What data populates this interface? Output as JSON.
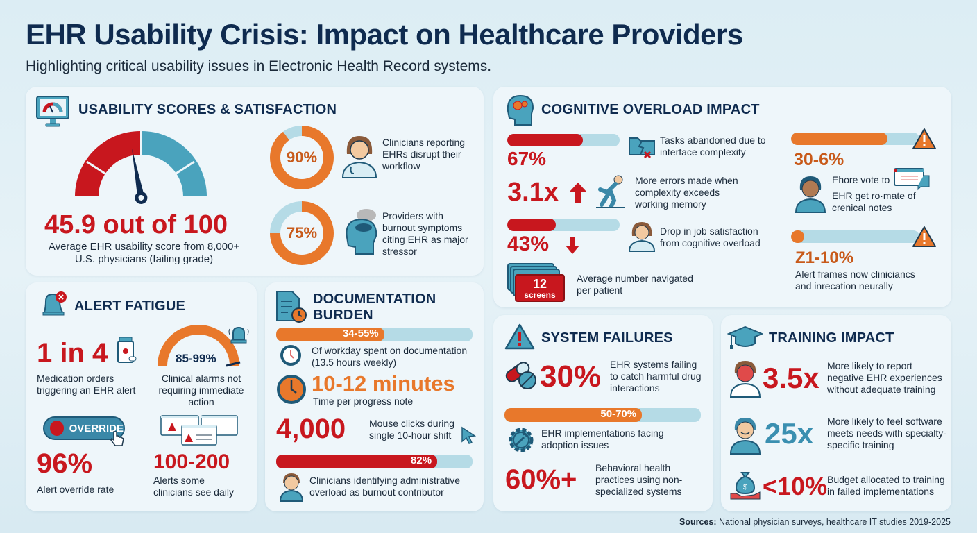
{
  "header": {
    "title": "EHR Usability Crisis: Impact on Healthcare Providers",
    "subtitle": "Highlighting critical usability issues in Electronic Health Record systems."
  },
  "colors": {
    "red": "#c8171e",
    "orange": "#e8782b",
    "teal": "#4aa3bd",
    "navy": "#0f2b4f",
    "track": "#b5dbe6"
  },
  "usability": {
    "title": "USABILITY SCORES & SATISFACTION",
    "icon": "monitor-gauge-icon",
    "score": 45.9,
    "score_text": "45.9 out of 100",
    "score_max": 100,
    "score_desc": "Average EHR usability score from 8,000+ U.S. physicians (failing grade)",
    "donuts": [
      {
        "value": 90,
        "label": "90%",
        "icon": "clinician-icon",
        "desc": "Clinicians reporting EHRs disrupt their workflow"
      },
      {
        "value": 75,
        "label": "75%",
        "icon": "stressed-head-icon",
        "desc": "Providers with burnout symptoms citing EHR as major stressor"
      }
    ]
  },
  "cognitive": {
    "title": "COGNITIVE OVERLOAD IMPACT",
    "icon": "brain-gears-icon",
    "items": [
      {
        "value": "67%",
        "fill": 67,
        "icon": "broken-folder-icon",
        "desc": "Tasks abandoned due to interface complexity"
      },
      {
        "value": "3.1x",
        "arrow": "up",
        "icon": "stumbling-person-icon",
        "desc": "More errors made when complexity exceeds working memory"
      },
      {
        "value": "43%",
        "fill": 43,
        "arrow": "down",
        "icon": "clinician-icon",
        "desc": "Drop in job satisfaction from cognitive overload"
      },
      {
        "value": "12",
        "unit": "screens",
        "icon": "stacked-screens-icon",
        "desc": "Average number navigated per patient"
      }
    ],
    "side_items": [
      {
        "value": "30-6%",
        "fill": 75,
        "icon": "warning-icon",
        "desc_line1": "Ehore vote to",
        "desc_line2": "EHR get ro·mate of crenical notes"
      },
      {
        "value": "Z1-10%",
        "fill": 10,
        "icon": "warning-icon",
        "desc": "Alert frames now cliniciancs and inrecation neurally"
      }
    ]
  },
  "alert": {
    "title": "ALERT FATIGUE",
    "icon": "bell-x-icon",
    "medication": {
      "value": "1 in 4",
      "desc": "Medication orders triggering an EHR alert"
    },
    "alarms": {
      "value": "85-99%",
      "desc": "Clinical alarms not requiring immediate action"
    },
    "override_label": "OVERRIDE",
    "override": {
      "value": "96%",
      "desc": "Alert override rate"
    },
    "daily": {
      "value": "100-200",
      "desc": "Alerts some clinicians see daily"
    }
  },
  "documentation": {
    "title_line1": "DOCUMENTATION",
    "title_line2": "BURDEN",
    "icon": "document-clock-icon",
    "workday": {
      "value": "34-55%",
      "fill": 55,
      "desc": "Of workday spent on documentation (13.5 hours weekly)"
    },
    "note": {
      "value": "10-12 minutes",
      "desc": "Time per progress note"
    },
    "clicks": {
      "value": "4,000",
      "desc": "Mouse clicks during single 10-hour shift"
    },
    "admin": {
      "value": "82%",
      "fill": 82,
      "desc": "Clinicians identifying administrative overload as burnout contributor"
    }
  },
  "system": {
    "title": "SYSTEM FAILURES",
    "icon": "warning-icon",
    "drug": {
      "value": "30%",
      "desc": "EHR systems failing to catch harmful drug interactions"
    },
    "adoption": {
      "value": "50-70%",
      "fill": 70,
      "desc": "EHR implementations facing adoption issues"
    },
    "behavioral": {
      "value": "60%+",
      "desc": "Behavioral health practices using non-specialized systems"
    }
  },
  "training": {
    "title": "TRAINING IMPACT",
    "icon": "graduation-cap-icon",
    "items": [
      {
        "value": "3.5x",
        "desc": "More likely to report negative EHR experiences without adequate training"
      },
      {
        "value": "25x",
        "desc": "More likely to feel software meets needs with specialty-specific training"
      },
      {
        "value": "<10%",
        "desc": "Budget allocated to training in failed implementations"
      }
    ]
  },
  "footer": {
    "sources_label": "Sources:",
    "sources_text": "National physician surveys, healthcare IT studies 2019-2025"
  }
}
